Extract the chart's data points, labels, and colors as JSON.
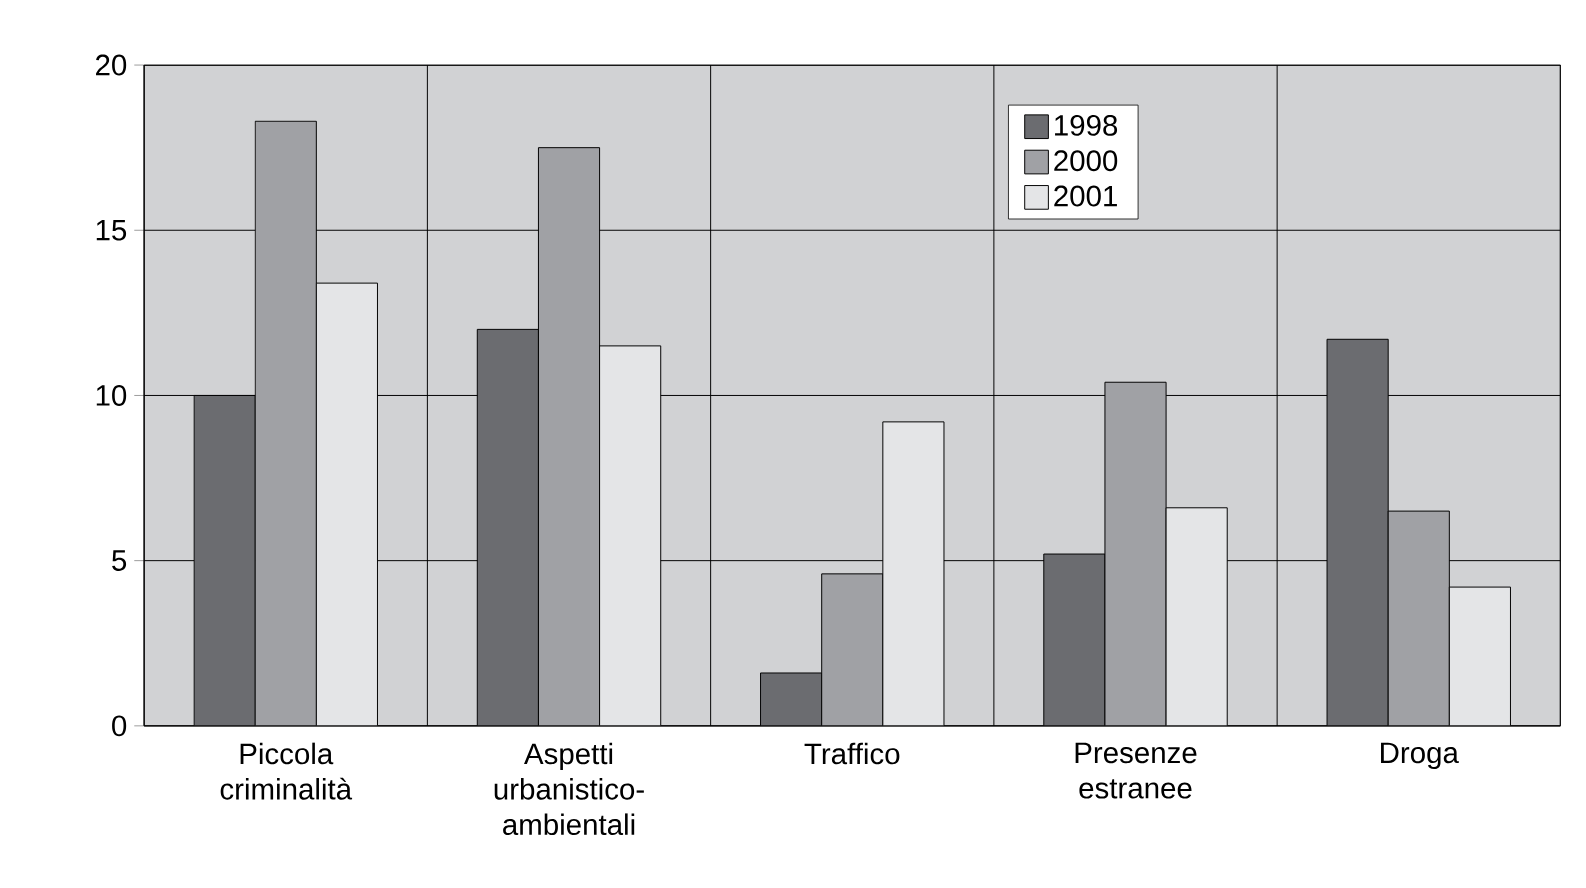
{
  "chart_data": {
    "type": "bar",
    "categories": [
      "Piccola criminalità",
      "Aspetti urbanistico-ambientali",
      "Traffico",
      "Presenze estranee",
      "Droga"
    ],
    "series": [
      {
        "name": "1998",
        "color": "#6b6c70",
        "values": [
          10.0,
          12.0,
          1.6,
          5.2,
          11.7
        ]
      },
      {
        "name": "2000",
        "color": "#a0a1a5",
        "values": [
          18.3,
          17.5,
          4.6,
          10.4,
          6.5
        ]
      },
      {
        "name": "2001",
        "color": "#e4e5e7",
        "values": [
          13.4,
          11.5,
          9.2,
          6.6,
          4.2
        ]
      }
    ],
    "ylim": [
      0,
      20
    ],
    "yticks": [
      0,
      5,
      10,
      15,
      20
    ],
    "grid": true,
    "legend": "top right"
  }
}
